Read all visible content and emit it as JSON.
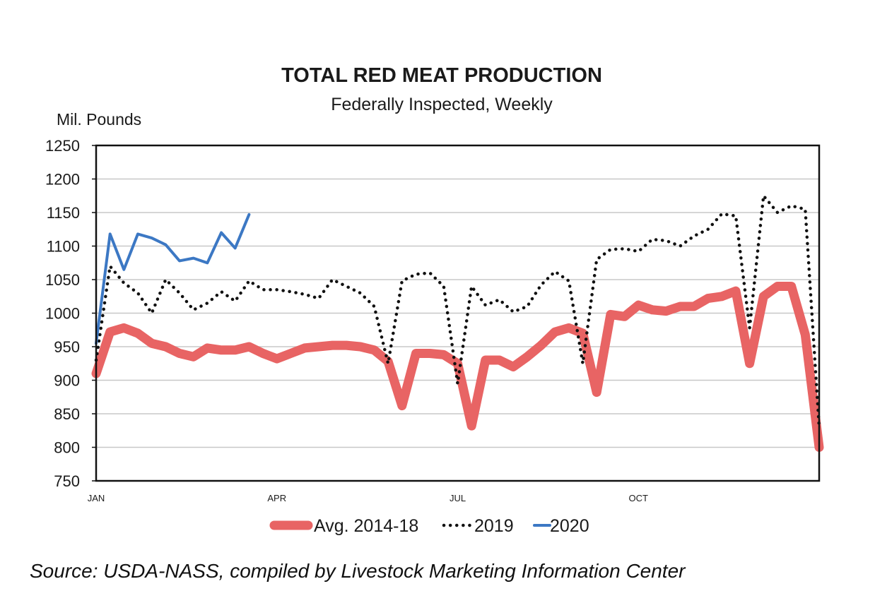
{
  "chart_data": {
    "type": "line",
    "title": "TOTAL RED MEAT PRODUCTION",
    "subtitle": "Federally Inspected, Weekly",
    "ylabel": "Mil. Pounds",
    "xlabel": "",
    "ylim": [
      750,
      1250
    ],
    "yticks": [
      1250,
      1200,
      1150,
      1100,
      1050,
      1000,
      950,
      900,
      850,
      800,
      750
    ],
    "xlim": [
      1,
      53
    ],
    "xticks": [
      {
        "label": "JAN",
        "week": 1
      },
      {
        "label": "APR",
        "week": 14
      },
      {
        "label": "JUL",
        "week": 27
      },
      {
        "label": "OCT",
        "week": 40
      }
    ],
    "grid": true,
    "legend_position": "bottom",
    "series": [
      {
        "name": "Avg. 2014-18",
        "color": "#e86464",
        "style": "thick",
        "x": [
          1,
          2,
          3,
          4,
          5,
          6,
          7,
          8,
          9,
          10,
          11,
          12,
          13,
          14,
          15,
          16,
          17,
          18,
          19,
          20,
          21,
          22,
          23,
          24,
          25,
          26,
          27,
          28,
          29,
          30,
          31,
          32,
          33,
          34,
          35,
          36,
          37,
          38,
          39,
          40,
          41,
          42,
          43,
          44,
          45,
          46,
          47,
          48,
          49,
          50,
          51,
          52,
          53
        ],
        "values": [
          910,
          972,
          978,
          970,
          955,
          950,
          940,
          935,
          948,
          945,
          945,
          950,
          940,
          932,
          940,
          948,
          950,
          952,
          952,
          950,
          945,
          928,
          862,
          940,
          940,
          938,
          925,
          832,
          930,
          930,
          920,
          935,
          952,
          972,
          978,
          970,
          882,
          998,
          995,
          1012,
          1005,
          1003,
          1010,
          1010,
          1022,
          1025,
          1033,
          925,
          1025,
          1040,
          1040,
          968,
          800
        ]
      },
      {
        "name": "2019",
        "color": "#111111",
        "style": "dotted",
        "x": [
          1,
          2,
          3,
          4,
          5,
          6,
          7,
          8,
          9,
          10,
          11,
          12,
          13,
          14,
          15,
          16,
          17,
          18,
          19,
          20,
          21,
          22,
          23,
          24,
          25,
          26,
          27,
          28,
          29,
          30,
          31,
          32,
          33,
          34,
          35,
          36,
          37,
          38,
          39,
          40,
          41,
          42,
          43,
          44,
          45,
          46,
          47,
          48,
          49,
          50,
          51,
          52,
          53
        ],
        "values": [
          930,
          1070,
          1045,
          1030,
          1000,
          1050,
          1030,
          1005,
          1015,
          1032,
          1018,
          1048,
          1035,
          1035,
          1032,
          1028,
          1022,
          1050,
          1040,
          1030,
          1010,
          925,
          1048,
          1058,
          1060,
          1040,
          895,
          1040,
          1012,
          1020,
          1002,
          1010,
          1042,
          1062,
          1048,
          925,
          1080,
          1095,
          1096,
          1092,
          1110,
          1108,
          1100,
          1115,
          1125,
          1148,
          1145,
          978,
          1175,
          1150,
          1160,
          1155,
          830
        ]
      },
      {
        "name": "2020",
        "color": "#3c78c4",
        "style": "solid",
        "x": [
          1,
          2,
          3,
          4,
          5,
          6,
          7,
          8,
          9,
          10,
          11,
          12
        ],
        "values": [
          955,
          1118,
          1065,
          1118,
          1112,
          1102,
          1078,
          1082,
          1075,
          1120,
          1097,
          1147
        ]
      }
    ]
  },
  "source_text": "Source: USDA-NASS, compiled by Livestock Marketing Information Center"
}
